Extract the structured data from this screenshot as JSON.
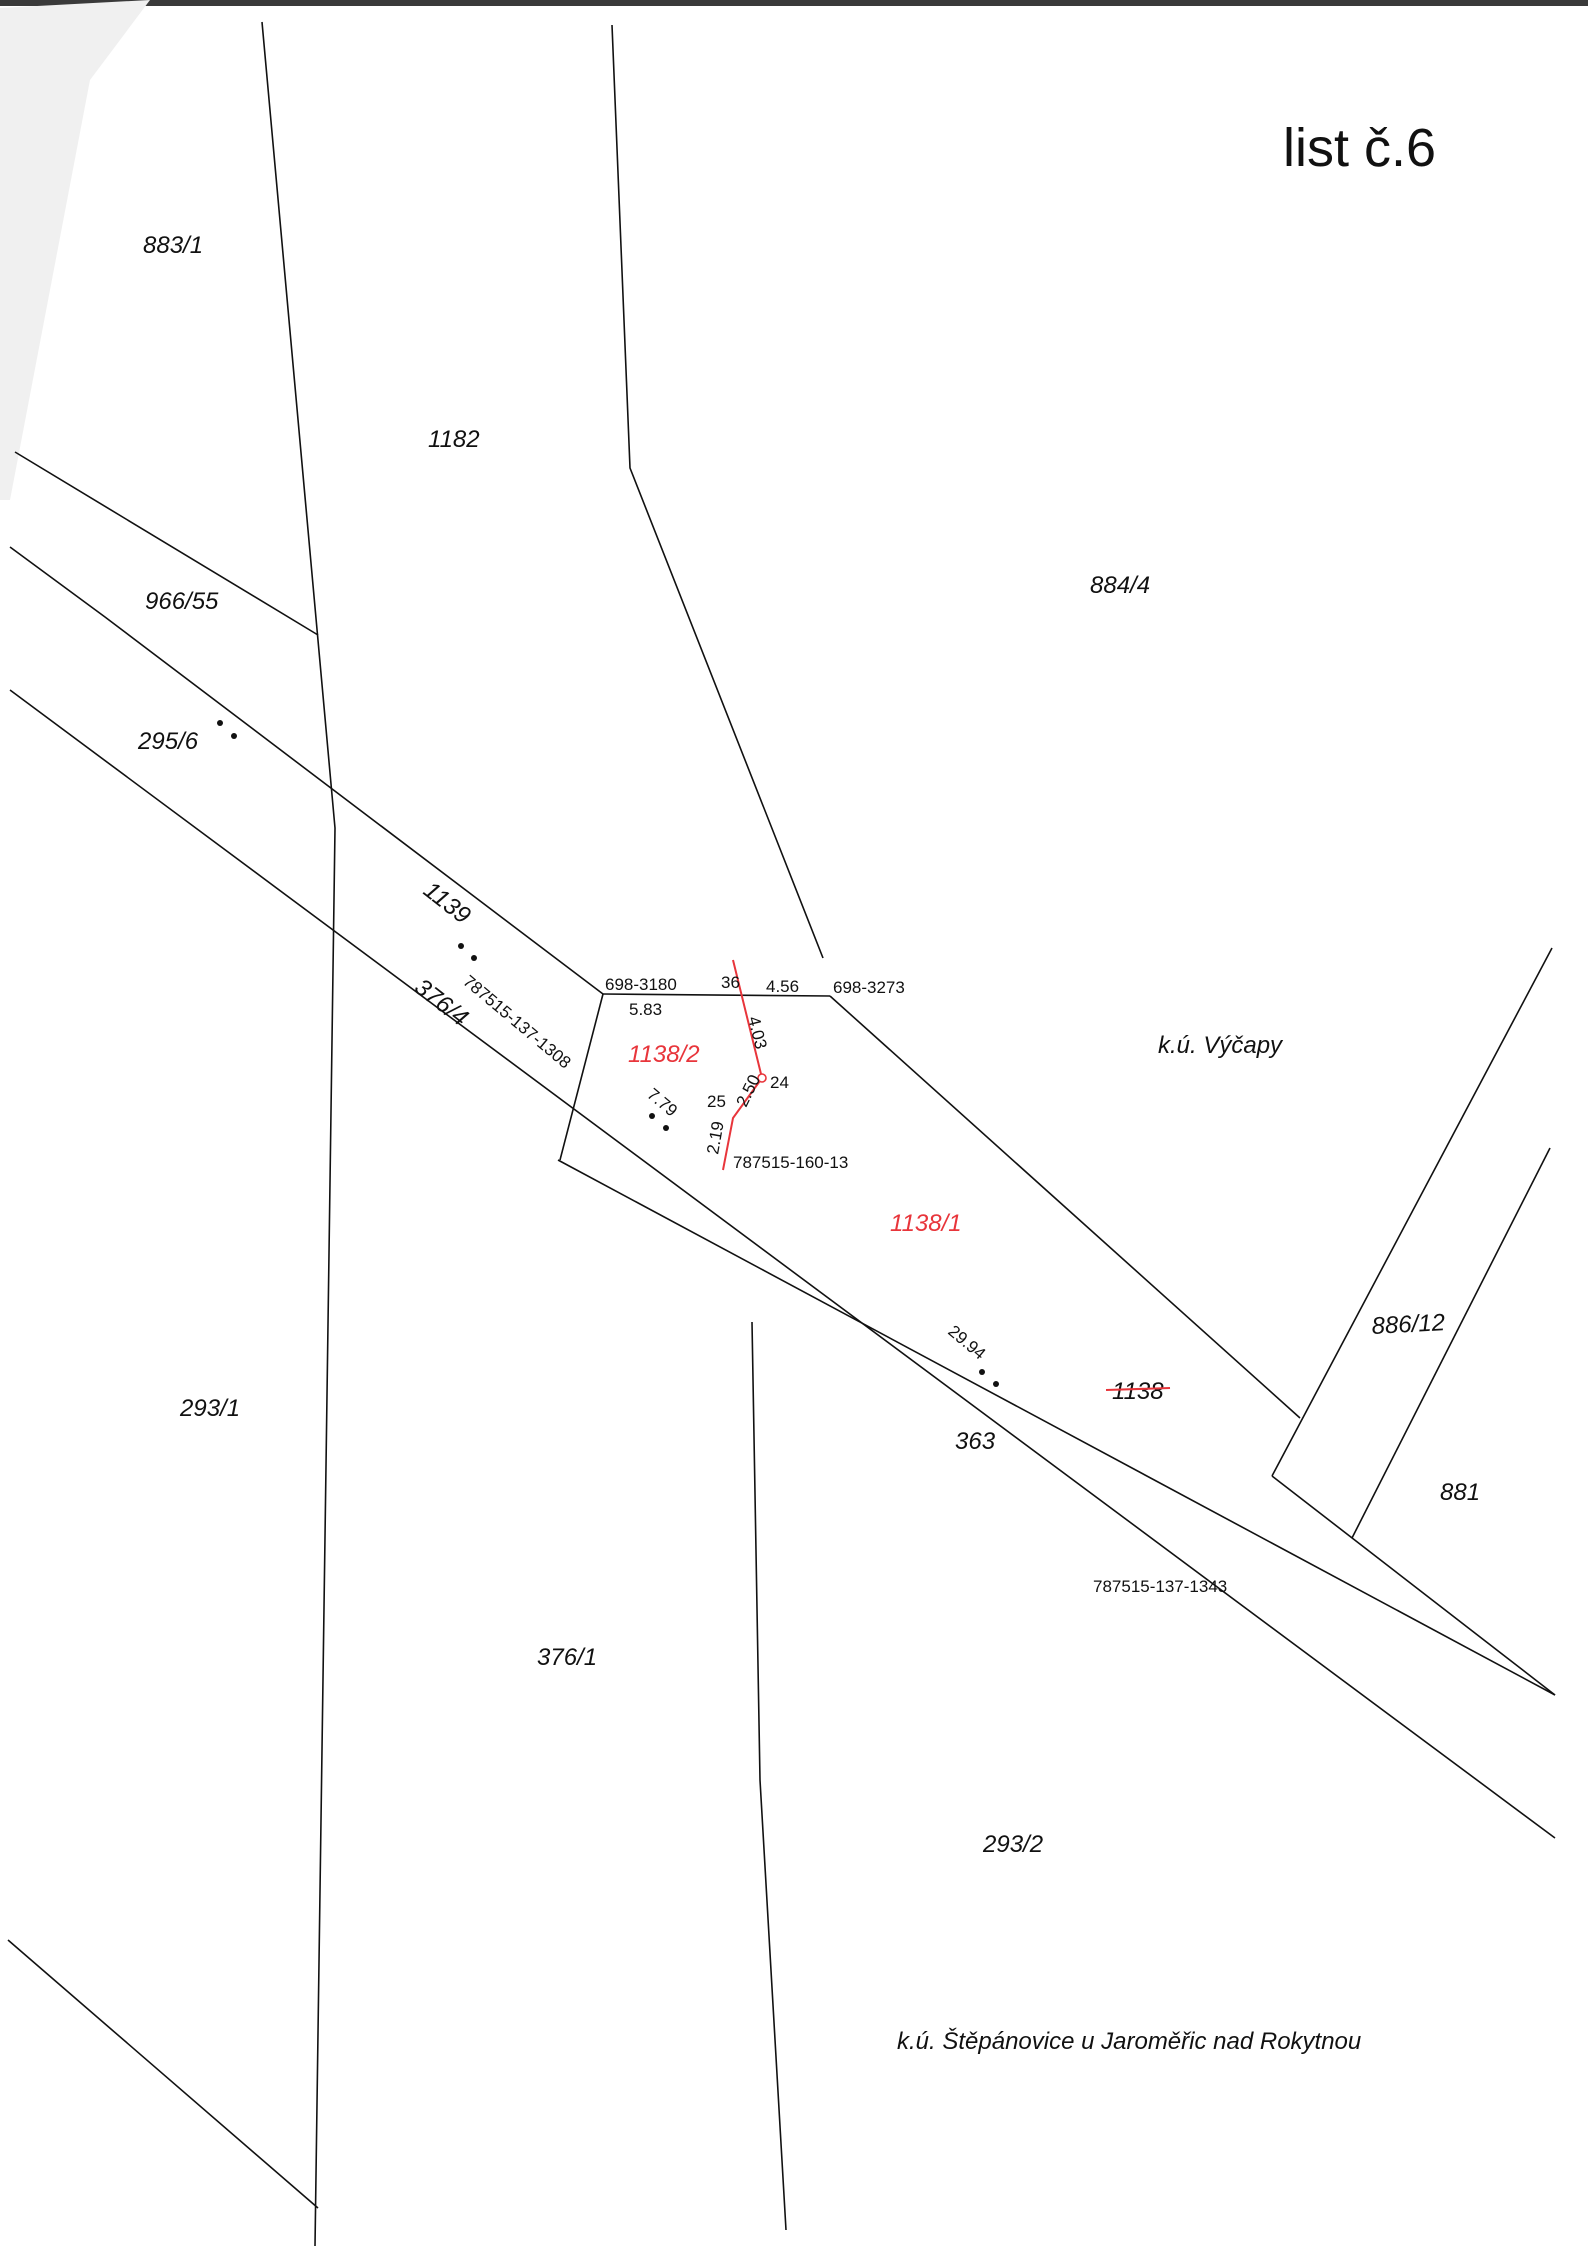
{
  "sheet": {
    "title": "list č.6"
  },
  "cadastral_areas": {
    "vycapy": "k.ú. Výčapy",
    "stepanovice": "k.ú. Štěpánovice u Jaroměřic nad Rokytnou"
  },
  "parcels": {
    "p883_1": "883/1",
    "p1182": "1182",
    "p884_4": "884/4",
    "p966_55": "966/55",
    "p295_6": "295/6",
    "p1139": "1139",
    "p376_4": "376/4",
    "p1138_2": "1138/2",
    "p1138_1": "1138/1",
    "p1138_old": "1138",
    "p886_12": "886/12",
    "p881": "881",
    "p363": "363",
    "p293_1": "293/1",
    "p376_1": "376/1",
    "p293_2": "293/2"
  },
  "points": {
    "pt_698_3180": "698-3180",
    "pt_698_3273": "698-3273",
    "pt_36": "36",
    "pt_24": "24",
    "pt_25": "25",
    "pt_787515_160_13": "787515-160-13",
    "pt_787515_137_1308": "787515-137-1308",
    "pt_787515_137_1343": "787515-137-1343"
  },
  "measures": {
    "m5_83": "5.83",
    "m4_56": "4.56",
    "m4_03": "4.03",
    "m2_50": "2.50",
    "m2_19": "2.19",
    "m7_79": "7.79",
    "m29_94": "29.94"
  },
  "colors": {
    "new_boundary": "#e8353b",
    "existing_boundary": "#111111",
    "scan_edge": "#3a3a3a"
  }
}
